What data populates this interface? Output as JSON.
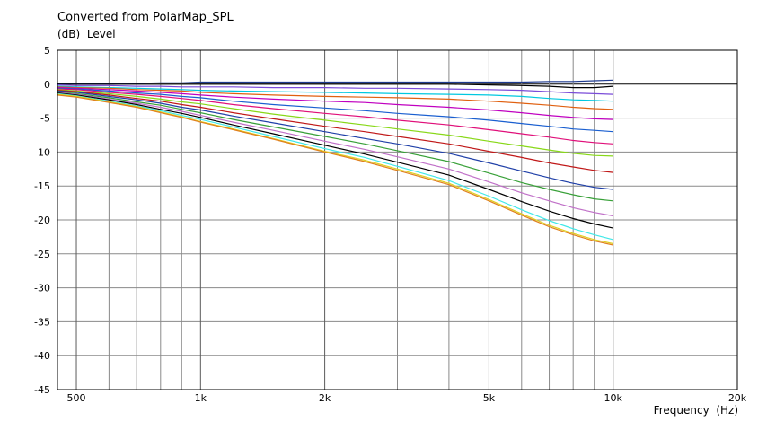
{
  "chart_data": {
    "type": "line",
    "title": "Converted from PolarMap_SPL",
    "ylabel_unit": "(dB)",
    "ylabel": "Level",
    "xlabel": "Frequency",
    "xlabel_unit": "(Hz)",
    "x_scale": "log",
    "xlim": [
      450,
      20000
    ],
    "ylim": [
      -45,
      5
    ],
    "grid": true,
    "y_ticks": [
      5,
      0,
      -5,
      -10,
      -15,
      -20,
      -25,
      -30,
      -35,
      -40,
      -45
    ],
    "x_ticks": [
      {
        "value": 500,
        "label": "500"
      },
      {
        "value": 1000,
        "label": "1k"
      },
      {
        "value": 2000,
        "label": "2k"
      },
      {
        "value": 5000,
        "label": "5k"
      },
      {
        "value": 10000,
        "label": "10k"
      },
      {
        "value": 20000,
        "label": "20k"
      }
    ],
    "x_minor_gridlines": [
      600,
      700,
      800,
      900,
      3000,
      4000,
      6000,
      7000,
      8000,
      9000
    ],
    "x": [
      450,
      500,
      600,
      700,
      800,
      900,
      1000,
      1200,
      1500,
      2000,
      2500,
      3000,
      4000,
      5000,
      6000,
      7000,
      8000,
      9000,
      10000
    ],
    "series": [
      {
        "color": "#1f3b8f",
        "values": [
          0.1,
          0.1,
          0.1,
          0.1,
          0.2,
          0.2,
          0.3,
          0.3,
          0.3,
          0.3,
          0.3,
          0.3,
          0.3,
          0.3,
          0.3,
          0.4,
          0.4,
          0.5,
          0.6
        ]
      },
      {
        "color": "#000000",
        "values": [
          0,
          0,
          0,
          0,
          0,
          0,
          0,
          0,
          0,
          0,
          0,
          0,
          0,
          -0.1,
          -0.2,
          -0.3,
          -0.5,
          -0.5,
          -0.3
        ]
      },
      {
        "color": "#7a4bd8",
        "values": [
          -0.1,
          -0.2,
          -0.2,
          -0.3,
          -0.3,
          -0.4,
          -0.4,
          -0.4,
          -0.5,
          -0.5,
          -0.6,
          -0.6,
          -0.7,
          -0.8,
          -0.9,
          -1.1,
          -1.3,
          -1.4,
          -1.5
        ]
      },
      {
        "color": "#00c8e0",
        "values": [
          -0.3,
          -0.4,
          -0.5,
          -0.6,
          -0.7,
          -0.8,
          -0.9,
          -1.0,
          -1.1,
          -1.2,
          -1.3,
          -1.4,
          -1.5,
          -1.6,
          -1.8,
          -2.1,
          -2.3,
          -2.4,
          -2.5
        ]
      },
      {
        "color": "#e06010",
        "values": [
          -0.4,
          -0.5,
          -0.6,
          -0.8,
          -0.9,
          -1.0,
          -1.2,
          -1.4,
          -1.6,
          -1.8,
          -1.9,
          -2.0,
          -2.2,
          -2.5,
          -2.8,
          -3.1,
          -3.4,
          -3.6,
          -3.7
        ]
      },
      {
        "color": "#c000c0",
        "values": [
          -0.5,
          -0.6,
          -0.8,
          -1.0,
          -1.2,
          -1.4,
          -1.6,
          -1.9,
          -2.2,
          -2.5,
          -2.7,
          -3.0,
          -3.4,
          -3.8,
          -4.2,
          -4.6,
          -4.9,
          -5.1,
          -5.2
        ]
      },
      {
        "color": "#1a5fd0",
        "values": [
          -0.6,
          -0.7,
          -1.0,
          -1.3,
          -1.5,
          -1.8,
          -2.0,
          -2.5,
          -3.0,
          -3.5,
          -3.9,
          -4.3,
          -4.8,
          -5.3,
          -5.8,
          -6.2,
          -6.6,
          -6.8,
          -7.0
        ]
      },
      {
        "color": "#e0107a",
        "values": [
          -0.7,
          -0.8,
          -1.2,
          -1.5,
          -1.8,
          -2.1,
          -2.4,
          -3.0,
          -3.6,
          -4.3,
          -4.8,
          -5.3,
          -6.0,
          -6.7,
          -7.3,
          -7.8,
          -8.3,
          -8.6,
          -8.8
        ]
      },
      {
        "color": "#88d818",
        "values": [
          -0.8,
          -1.0,
          -1.4,
          -1.8,
          -2.2,
          -2.6,
          -2.9,
          -3.6,
          -4.4,
          -5.3,
          -6.0,
          -6.6,
          -7.5,
          -8.4,
          -9.1,
          -9.7,
          -10.2,
          -10.5,
          -10.6
        ]
      },
      {
        "color": "#c01818",
        "values": [
          -0.9,
          -1.1,
          -1.6,
          -2.1,
          -2.5,
          -3.0,
          -3.4,
          -4.2,
          -5.1,
          -6.2,
          -7.0,
          -7.7,
          -8.8,
          -9.9,
          -10.8,
          -11.6,
          -12.2,
          -12.7,
          -13.0
        ]
      },
      {
        "color": "#2040a8",
        "values": [
          -1.0,
          -1.2,
          -1.8,
          -2.3,
          -2.8,
          -3.4,
          -3.8,
          -4.7,
          -5.7,
          -7.0,
          -8.0,
          -8.8,
          -10.2,
          -11.6,
          -12.8,
          -13.8,
          -14.6,
          -15.2,
          -15.5
        ]
      },
      {
        "color": "#38a038",
        "values": [
          -1.1,
          -1.4,
          -2.0,
          -2.6,
          -3.1,
          -3.7,
          -4.2,
          -5.2,
          -6.3,
          -7.7,
          -8.8,
          -9.8,
          -11.4,
          -13.1,
          -14.5,
          -15.5,
          -16.3,
          -16.9,
          -17.2
        ]
      },
      {
        "color": "#c070c8",
        "values": [
          -1.2,
          -1.5,
          -2.2,
          -2.8,
          -3.4,
          -4.0,
          -4.6,
          -5.6,
          -6.8,
          -8.4,
          -9.6,
          -10.7,
          -12.5,
          -14.4,
          -16.0,
          -17.2,
          -18.2,
          -18.9,
          -19.4
        ]
      },
      {
        "color": "#000000",
        "values": [
          -1.3,
          -1.6,
          -2.3,
          -3.0,
          -3.7,
          -4.3,
          -4.9,
          -6.0,
          -7.3,
          -9.0,
          -10.3,
          -11.5,
          -13.4,
          -15.5,
          -17.3,
          -18.7,
          -19.8,
          -20.6,
          -21.2
        ]
      },
      {
        "color": "#40e8e8",
        "values": [
          -1.4,
          -1.7,
          -2.5,
          -3.2,
          -3.9,
          -4.6,
          -5.2,
          -6.3,
          -7.7,
          -9.5,
          -10.8,
          -12.1,
          -14.2,
          -16.5,
          -18.5,
          -20.1,
          -21.3,
          -22.2,
          -22.9
        ]
      },
      {
        "color": "#e0d020",
        "values": [
          -1.5,
          -1.8,
          -2.6,
          -3.3,
          -4.1,
          -4.8,
          -5.5,
          -6.6,
          -8.0,
          -9.9,
          -11.2,
          -12.5,
          -14.6,
          -17.0,
          -19.1,
          -20.8,
          -22.0,
          -22.9,
          -23.5
        ]
      },
      {
        "color": "#e08020",
        "values": [
          -1.6,
          -1.9,
          -2.7,
          -3.4,
          -4.2,
          -4.9,
          -5.6,
          -6.7,
          -8.1,
          -10.0,
          -11.4,
          -12.7,
          -14.8,
          -17.2,
          -19.3,
          -21.0,
          -22.2,
          -23.1,
          -23.7
        ]
      }
    ]
  }
}
